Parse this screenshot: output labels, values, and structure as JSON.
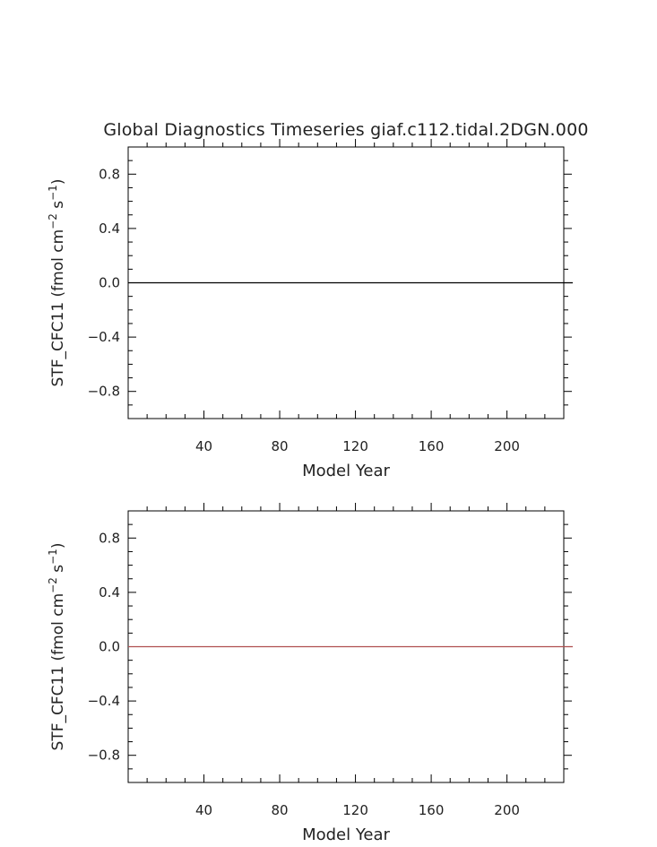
{
  "chart_data": [
    {
      "type": "line",
      "title": "Global Diagnostics Timeseries giaf.c112.tidal.2DGN.000",
      "xlabel": "Model Year",
      "ylabel": {
        "prefix": "STF_CFC11  (fmol cm",
        "exp1": "−2",
        "middle": " s",
        "exp2": "−1",
        "suffix": ")"
      },
      "xlim": [
        0,
        230
      ],
      "ylim": [
        -1.0,
        1.0
      ],
      "xticks": [
        "40",
        "80",
        "120",
        "160",
        "200"
      ],
      "yticks": [
        "0.8",
        "0.4",
        "0.0",
        "−0.4",
        "−0.8"
      ],
      "series": [
        {
          "color": "#000000",
          "x": [
            0,
            230
          ],
          "y": [
            0.0,
            0.0
          ]
        }
      ]
    },
    {
      "type": "line",
      "title": "",
      "xlabel": "Model Year",
      "ylabel": {
        "prefix": "STF_CFC11  (fmol cm",
        "exp1": "−2",
        "middle": " s",
        "exp2": "−1",
        "suffix": ")"
      },
      "xlim": [
        0,
        230
      ],
      "ylim": [
        -1.0,
        1.0
      ],
      "xticks": [
        "40",
        "80",
        "120",
        "160",
        "200"
      ],
      "yticks": [
        "0.8",
        "0.4",
        "0.0",
        "−0.4",
        "−0.8"
      ],
      "series": [
        {
          "color": "#b05050",
          "x": [
            0,
            230
          ],
          "y": [
            0.0,
            0.0
          ]
        }
      ]
    }
  ]
}
